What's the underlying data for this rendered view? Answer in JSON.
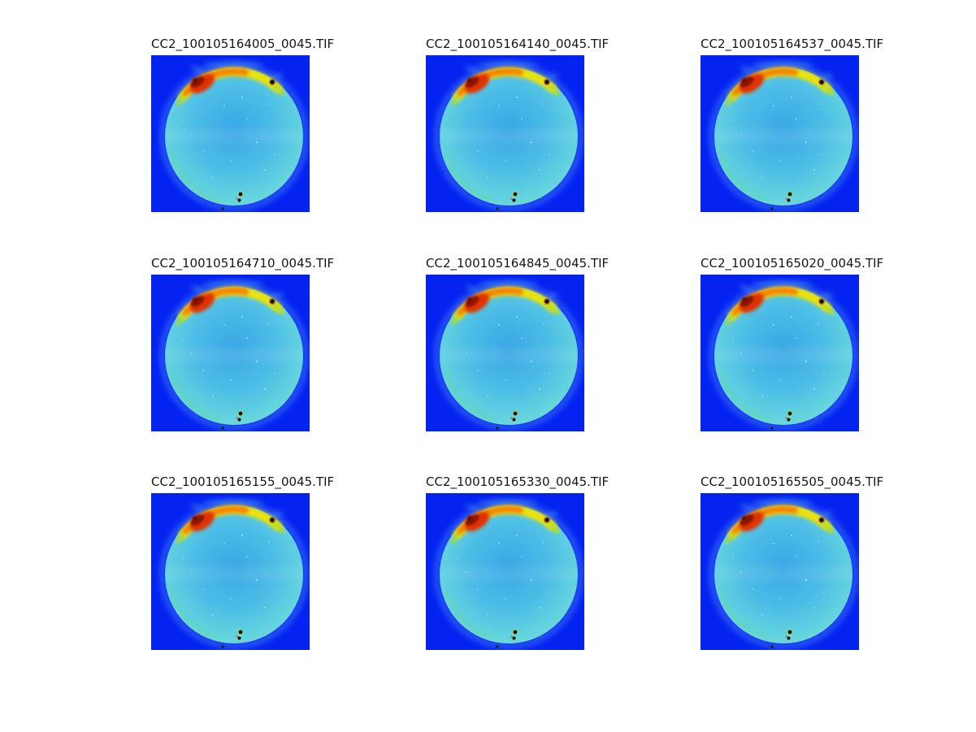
{
  "figure": {
    "kind": "image montage figure",
    "rows": 3,
    "cols": 3,
    "tiles": [
      {
        "title": "CC2_100105164005_0045.TIF"
      },
      {
        "title": "CC2_100105164140_0045.TIF"
      },
      {
        "title": "CC2_100105164537_0045.TIF"
      },
      {
        "title": "CC2_100105164710_0045.TIF"
      },
      {
        "title": "CC2_100105164845_0045.TIF"
      },
      {
        "title": "CC2_100105165020_0045.TIF"
      },
      {
        "title": "CC2_100105165155_0045.TIF"
      },
      {
        "title": "CC2_100105165330_0045.TIF"
      },
      {
        "title": "CC2_100105165505_0045.TIF"
      }
    ]
  },
  "chart_data": {
    "type": "heatmap",
    "layout": "3x3 subplot montage of false-color all-sky camera frames",
    "colormap": "jet",
    "legend_position": "none",
    "axes": "off (no ticks, no axis labels)",
    "subplot_titles": [
      "CC2_100105164005_0045.TIF",
      "CC2_100105164140_0045.TIF",
      "CC2_100105164537_0045.TIF",
      "CC2_100105164710_0045.TIF",
      "CC2_100105164845_0045.TIF",
      "CC2_100105165020_0045.TIF",
      "CC2_100105165155_0045.TIF",
      "CC2_100105165330_0045.TIF",
      "CC2_100105165505_0045.TIF"
    ],
    "content_description": "Each frame: deep-blue background (low values), circular fisheye sky disk in light cyan-azure (mid values), a hot yellow-orange arc along the upper rim with a dark-red maximum blob at the upper left, a small black saturated dot on the upper-right rim, two small black artifact dots near the bottom of the disk, and faint white star-like specks."
  },
  "palette": {
    "page_bg": "#ffffff",
    "title_color": "#161616",
    "bg_blue": "#0523f0",
    "halo_blue": "#2b5cf5",
    "disk_center": "#39a7e6",
    "disk_mid": "#4cbde6",
    "disk_edge": "#62d2e0",
    "disk_rim": "#76dcd4",
    "rim_green": "#5fd3a4",
    "hot_yellow": "#f2e400",
    "hot_orange": "#f67d00",
    "hot_red": "#e03200",
    "hot_dark": "#8e1600",
    "dot_black": "#170c02"
  }
}
